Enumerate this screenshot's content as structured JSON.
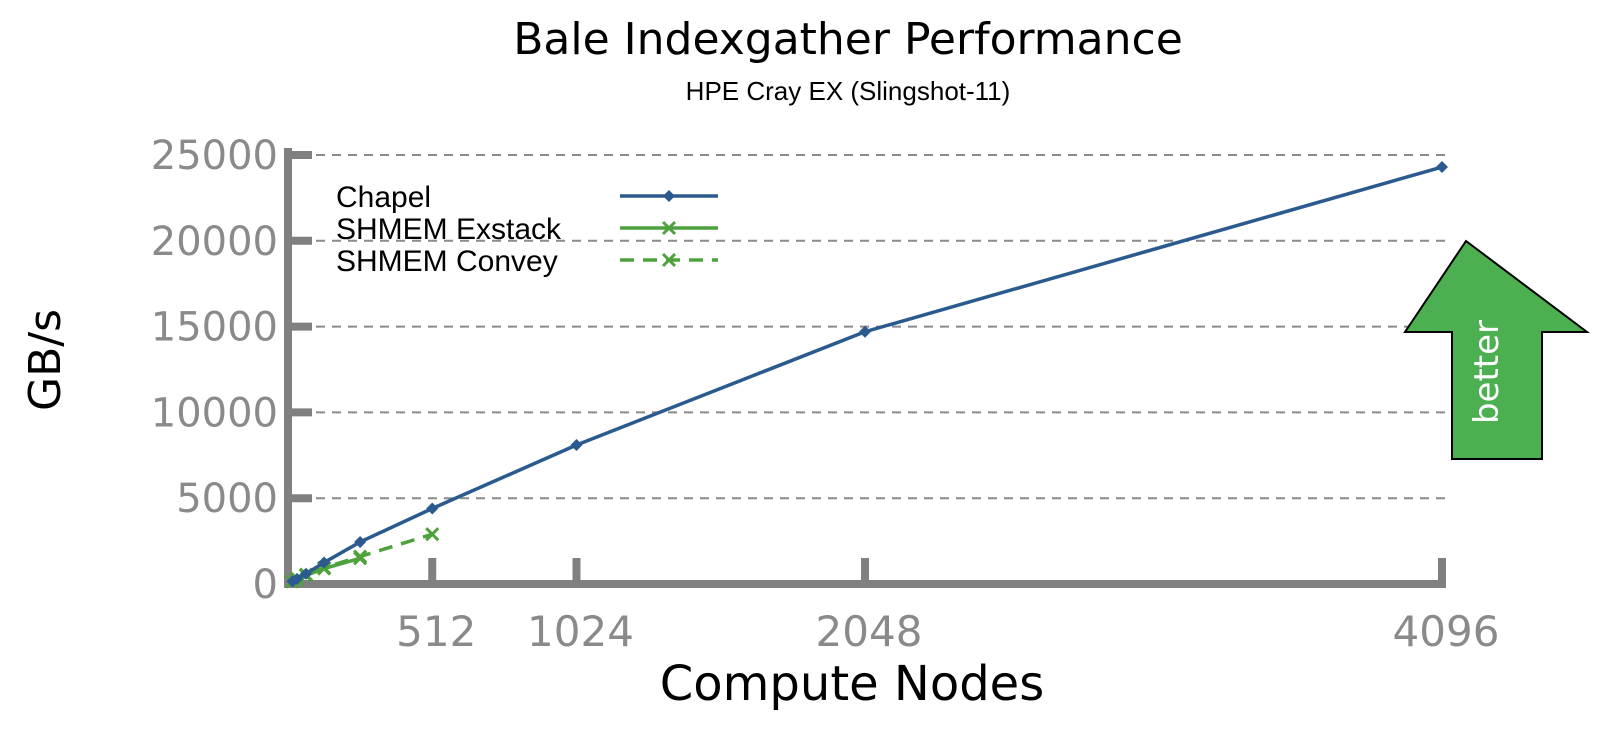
{
  "chart_data": {
    "type": "line",
    "title": "Bale Indexgather Performance",
    "subtitle": "HPE Cray EX (Slingshot-11)",
    "xlabel": "Compute Nodes",
    "ylabel": "GB/s",
    "xlim": [
      0,
      4096
    ],
    "ylim": [
      0,
      25000
    ],
    "xticks": [
      512,
      1024,
      2048,
      4096
    ],
    "xtick_labels": [
      "512",
      "1024",
      "2048",
      "4096"
    ],
    "yticks": [
      0,
      5000,
      10000,
      15000,
      20000,
      25000
    ],
    "ytick_labels": [
      "0",
      "5000",
      "10000",
      "15000",
      "20000",
      "25000"
    ],
    "grid": "horizontal dashed",
    "legend_position": "top-left",
    "series": [
      {
        "name": "Chapel",
        "color": "#2b5a8e",
        "marker": "diamond",
        "line_style": "solid",
        "x": [
          16,
          32,
          64,
          128,
          256,
          512,
          1024,
          2048,
          4096
        ],
        "y": [
          150,
          300,
          600,
          1250,
          2450,
          4400,
          8100,
          14700,
          24300
        ]
      },
      {
        "name": "SHMEM Exstack",
        "color": "#4ea23d",
        "marker": "x",
        "line_style": "solid",
        "x": [
          16,
          32,
          64,
          128,
          256
        ],
        "y": [
          150,
          280,
          500,
          900,
          1500
        ]
      },
      {
        "name": "SHMEM Convey",
        "color": "#4ea23d",
        "marker": "x",
        "line_style": "dashed",
        "x": [
          16,
          32,
          64,
          128,
          256,
          512
        ],
        "y": [
          150,
          300,
          550,
          950,
          1600,
          2900
        ]
      }
    ],
    "annotations": [
      {
        "text": "better",
        "shape": "up-arrow",
        "color": "#4caf50"
      }
    ]
  }
}
